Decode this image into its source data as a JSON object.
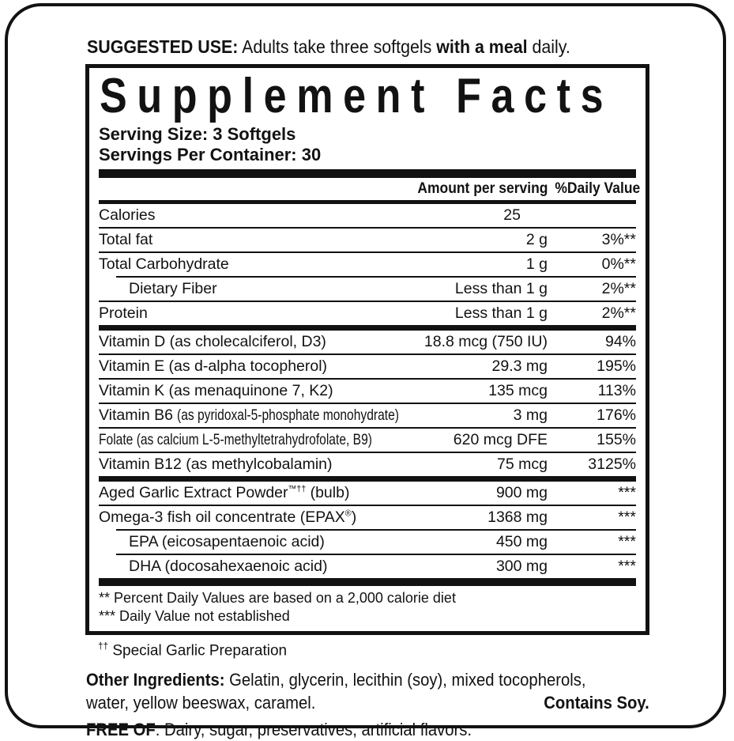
{
  "colors": {
    "ink": "#121212",
    "paper": "#ffffff"
  },
  "suggested_use": {
    "label": "SUGGESTED USE:",
    "pre": " Adults take three softgels ",
    "bold": "with a meal",
    "post": " daily."
  },
  "panel": {
    "title": "Supplement Facts",
    "serving_size": "Serving Size: 3 Softgels",
    "servings_per_container": "Servings Per Container: 30",
    "columns": {
      "amount": "Amount per serving",
      "daily_value": "%Daily Value"
    },
    "sections": [
      {
        "rows": [
          {
            "name": [
              {
                "t": "Calories"
              }
            ],
            "amount": "25",
            "dv": ""
          },
          {
            "name": [
              {
                "t": "Total fat"
              }
            ],
            "amount": "2 g",
            "dv": "3%**"
          },
          {
            "name": [
              {
                "t": "Total Carbohydrate"
              }
            ],
            "amount": "1 g",
            "dv": "0%**"
          },
          {
            "name": [
              {
                "t": "Dietary Fiber"
              }
            ],
            "amount": "Less than 1 g",
            "dv": "2%**",
            "indent": true
          },
          {
            "name": [
              {
                "t": "Protein"
              }
            ],
            "amount": "Less than 1 g",
            "dv": "2%**"
          }
        ]
      },
      {
        "rows": [
          {
            "name": [
              {
                "t": "Vitamin D (as cholecalciferol, D3)"
              }
            ],
            "amount": "18.8 mcg (750 IU)",
            "dv": "94%"
          },
          {
            "name": [
              {
                "t": "Vitamin E (as d-alpha tocopherol)"
              }
            ],
            "amount": "29.3 mg",
            "dv": "195%"
          },
          {
            "name": [
              {
                "t": "Vitamin K (as menaquinone 7, K2)"
              }
            ],
            "amount": "135 mcg",
            "dv": "113%"
          },
          {
            "name": [
              {
                "t": "Vitamin B6 "
              },
              {
                "t": "(as pyridoxal-5-phosphate monohydrate)",
                "cond": true
              }
            ],
            "amount": "3 mg",
            "dv": "176%"
          },
          {
            "name": [
              {
                "t": "Folate (as calcium L-5-methyltetrahydrofolate, B9)",
                "cond": true
              }
            ],
            "amount": "620 mcg DFE",
            "dv": "155%"
          },
          {
            "name": [
              {
                "t": "Vitamin B12 (as methylcobalamin)"
              }
            ],
            "amount": "75 mcg",
            "dv": "3125%"
          }
        ]
      },
      {
        "rows": [
          {
            "name": [
              {
                "t": "Aged Garlic Extract Powder"
              },
              {
                "t": "™††",
                "sup": true
              },
              {
                "t": " (bulb)"
              }
            ],
            "amount": "900 mg",
            "dv": "***"
          },
          {
            "name": [
              {
                "t": "Omega-3 fish oil concentrate (EPAX"
              },
              {
                "t": "®",
                "sup": true
              },
              {
                "t": ")"
              }
            ],
            "amount": "1368 mg",
            "dv": "***"
          },
          {
            "name": [
              {
                "t": "EPA (eicosapentaenoic acid)"
              }
            ],
            "amount": "450 mg",
            "dv": "***",
            "indent": true
          },
          {
            "name": [
              {
                "t": "DHA (docosahexaenoic acid)"
              }
            ],
            "amount": "300 mg",
            "dv": "***",
            "indent": true
          }
        ]
      }
    ],
    "footnotes": [
      "** Percent Daily Values are based on a 2,000 calorie diet",
      "*** Daily Value not established"
    ]
  },
  "garlic_note": {
    "sup": "††",
    "text": " Special Garlic Preparation"
  },
  "other_ingredients": {
    "label": "Other Ingredients:",
    "line1_rest": " Gelatin, glycerin, lecithin (soy), mixed tocopherols,",
    "line2": "water, yellow beeswax, caramel.",
    "contains": "Contains Soy."
  },
  "free_of": {
    "label": "FREE OF",
    "text": ": Dairy, sugar, preservatives, artificial flavors."
  }
}
